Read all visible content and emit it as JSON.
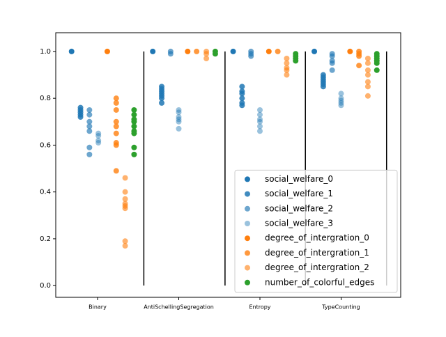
{
  "chart_data": {
    "type": "scatter",
    "xlim": [
      -0.515,
      3.734
    ],
    "ylim": [
      -0.05,
      1.08
    ],
    "xticks": [
      {
        "value": 0,
        "label": "Binary"
      },
      {
        "value": 1,
        "label": "AntiSchellingSegregation"
      },
      {
        "value": 2,
        "label": "Entropy"
      },
      {
        "value": 3,
        "label": "TypeCounting"
      }
    ],
    "yticks": [
      {
        "value": 0,
        "label": "0.0"
      },
      0.2,
      0.4,
      0.6,
      0.8,
      {
        "value": 1,
        "label": "1.0"
      }
    ],
    "legend": "lower right",
    "vlines": {
      "x": [
        0.57,
        1.57,
        2.56,
        3.56
      ],
      "ymin": 0,
      "ymax": 1,
      "color": "#000000"
    },
    "series": [
      {
        "name": "social_welfare_0",
        "color": "#1f77b4",
        "opacity": 1,
        "x": [
          -0.32,
          0.68,
          1.67,
          2.67
        ],
        "values": [
          1,
          1,
          1,
          1
        ]
      },
      {
        "name": "social_welfare_1",
        "color": "#1f77b4",
        "opacity": 0.85,
        "x": [
          -0.21,
          -0.21,
          -0.21,
          -0.21,
          -0.21,
          0.79,
          0.79,
          0.79,
          0.79,
          0.79,
          0.79,
          0.79,
          1.78,
          1.78,
          1.78,
          1.78,
          1.78,
          1.78,
          2.78,
          2.78,
          2.78,
          2.78,
          2.78,
          2.78
        ],
        "values": [
          0.76,
          0.75,
          0.74,
          0.73,
          0.72,
          0.85,
          0.84,
          0.83,
          0.82,
          0.81,
          0.8,
          0.78,
          0.85,
          0.83,
          0.82,
          0.8,
          0.78,
          0.77,
          0.9,
          0.89,
          0.88,
          0.87,
          0.86,
          0.85
        ]
      },
      {
        "name": "social_welfare_2",
        "color": "#1f77b4",
        "opacity": 0.65,
        "x": [
          -0.1,
          -0.1,
          -0.1,
          -0.1,
          -0.1,
          -0.1,
          -0.1,
          0.9,
          0.9,
          1.89,
          1.89,
          1.89,
          2.89,
          2.89,
          2.89,
          2.89,
          2.89
        ],
        "values": [
          0.75,
          0.73,
          0.7,
          0.68,
          0.66,
          0.59,
          0.56,
          1,
          0.99,
          1,
          0.99,
          0.98,
          0.99,
          0.98,
          0.96,
          0.95,
          0.92
        ]
      },
      {
        "name": "social_welfare_3",
        "color": "#1f77b4",
        "opacity": 0.45,
        "x": [
          0.01,
          0.01,
          0.01,
          0.01,
          1.0,
          1.0,
          1.0,
          1.0,
          1.0,
          1.0,
          2.0,
          2.0,
          2.0,
          2.0,
          2.0,
          2.0,
          3.0,
          3.0,
          3.0,
          3.0,
          3.0
        ],
        "values": [
          0.65,
          0.64,
          0.62,
          0.61,
          0.75,
          0.74,
          0.72,
          0.71,
          0.7,
          0.67,
          0.75,
          0.73,
          0.71,
          0.7,
          0.68,
          0.66,
          0.82,
          0.8,
          0.79,
          0.78,
          0.77
        ]
      },
      {
        "name": "degree_of_intergration_0",
        "color": "#ff7f0e",
        "opacity": 1,
        "x": [
          0.12,
          1.11,
          2.11,
          3.11
        ],
        "values": [
          1,
          1,
          1,
          1
        ]
      },
      {
        "name": "degree_of_intergration_1",
        "color": "#ff7f0e",
        "opacity": 0.8,
        "x": [
          0.23,
          0.23,
          0.23,
          0.23,
          0.23,
          0.23,
          0.23,
          0.23,
          0.23,
          1.22,
          2.22,
          3.22,
          3.22,
          3.22,
          3.22
        ],
        "values": [
          0.8,
          0.78,
          0.75,
          0.7,
          0.68,
          0.65,
          0.61,
          0.6,
          0.49,
          1,
          1,
          1,
          0.99,
          0.98,
          0.94
        ]
      },
      {
        "name": "degree_of_intergration_2",
        "color": "#ff7f0e",
        "opacity": 0.6,
        "x": [
          0.34,
          0.34,
          0.34,
          0.34,
          0.34,
          0.34,
          0.34,
          0.34,
          1.34,
          1.34,
          1.34,
          2.33,
          2.33,
          2.33,
          2.33,
          2.33,
          3.33,
          3.33,
          3.33,
          3.33,
          3.33,
          3.33,
          3.33
        ],
        "values": [
          0.46,
          0.4,
          0.37,
          0.35,
          0.34,
          0.33,
          0.19,
          0.17,
          1,
          0.99,
          0.97,
          0.97,
          0.95,
          0.93,
          0.92,
          0.9,
          0.97,
          0.95,
          0.92,
          0.9,
          0.87,
          0.85,
          0.81
        ]
      },
      {
        "name": "number_of_colorful_edges",
        "color": "#2ca02c",
        "opacity": 1,
        "x": [
          0.45,
          0.45,
          0.45,
          0.45,
          0.45,
          0.45,
          0.45,
          0.45,
          0.45,
          1.45,
          1.45,
          2.44,
          2.44,
          2.44,
          2.44,
          3.44,
          3.44,
          3.44,
          3.44,
          3.44,
          3.44
        ],
        "values": [
          0.75,
          0.73,
          0.71,
          0.7,
          0.68,
          0.66,
          0.65,
          0.59,
          0.56,
          1,
          0.99,
          0.99,
          0.98,
          0.97,
          0.96,
          0.99,
          0.98,
          0.97,
          0.96,
          0.95,
          0.92
        ]
      }
    ]
  }
}
